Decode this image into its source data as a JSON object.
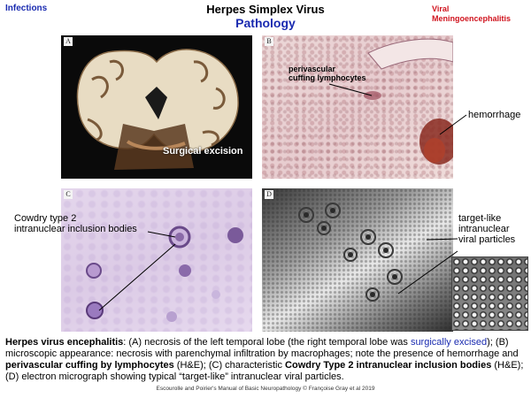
{
  "header": {
    "section_label": "Infections",
    "title": "Herpes  Simplex Virus",
    "subtitle": "Pathology",
    "topic_line1": "Viral",
    "topic_line2": "Meningoencephalitis"
  },
  "panels": {
    "a": {
      "letter": "A",
      "annotation": "Surgical excision"
    },
    "b": {
      "letter": "B",
      "annotation_line1": "perivascular",
      "annotation_line2": "cuffing lymphocytes",
      "side_label": "hemorrhage"
    },
    "c": {
      "letter": "C",
      "side_line1": "Cowdry type 2",
      "side_line2": "intranuclear inclusion bodies"
    },
    "d": {
      "letter": "D",
      "side_line1": "target-like",
      "side_line2": "intranuclear",
      "side_line3": "viral particles"
    }
  },
  "caption": {
    "p1": "Herpes virus encephalitis",
    "p2": ": (A) necrosis of the left temporal lobe (the right temporal lobe was ",
    "p3": "surgically excised",
    "p4": "); (B) microscopic appearance: necrosis with parenchymal infiltration by macrophages; note the presence of hemorrhage and ",
    "p5": "perivascular cuffing by lymphocytes",
    "p6": " (H&E); (C) characteristic ",
    "p7": "Cowdry Type 2 intranuclear inclusion bodies",
    "p8": " (H&E); (D) electron micrograph showing typical “target-like” intranuclear viral particles."
  },
  "footer": "Escourolle and Poirier's Manual of Basic Neuropathology  © Françoise Gray et al 2019"
}
